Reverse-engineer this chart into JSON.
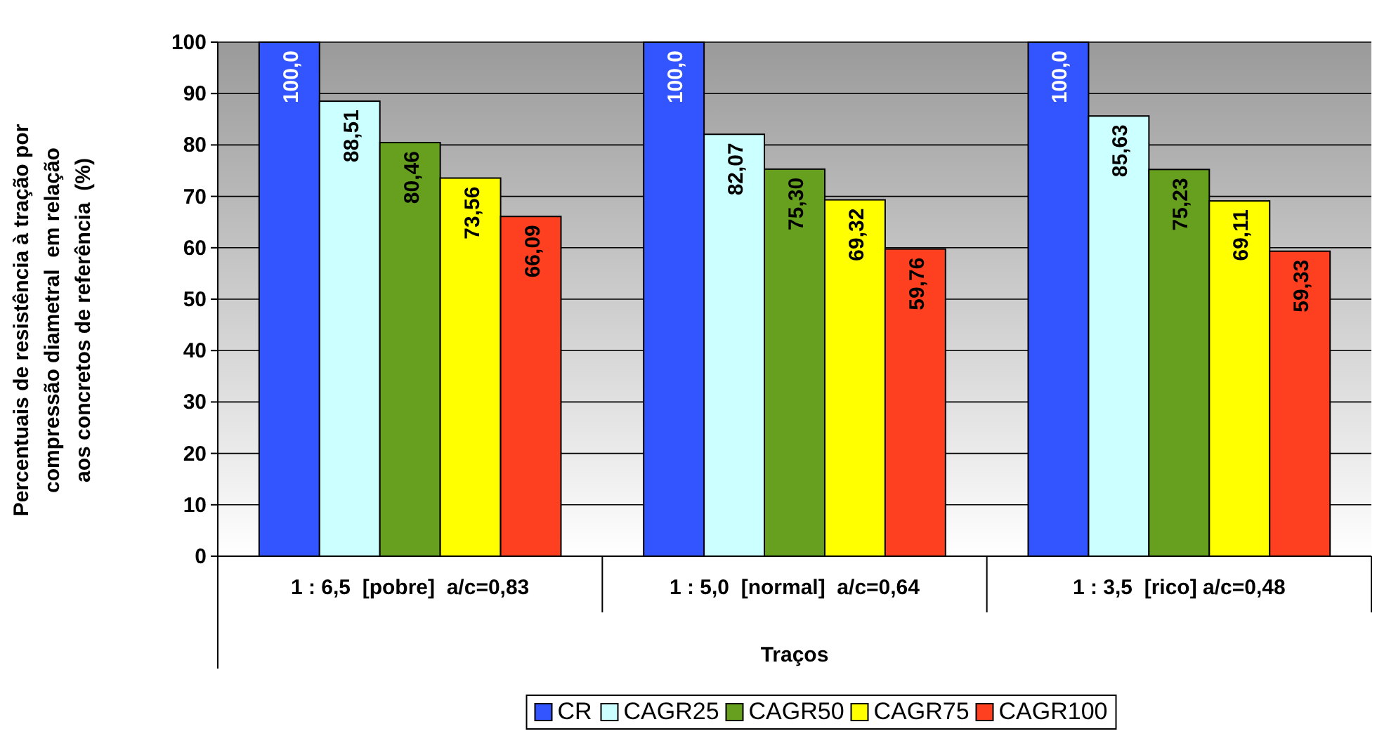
{
  "chart_data": {
    "type": "bar",
    "xlabel": "Traços",
    "ylabel": "Percentuais de resistência à tração por\ncompressão diametral  em relação\naos concretos de referência  (%)",
    "categories": [
      "1 : 6,5  [pobre]  a/c=0,83",
      "1 : 5,0  [normal]  a/c=0,64",
      "1 : 3,5  [rico] a/c=0,48"
    ],
    "series": [
      {
        "name": "CR",
        "color": "#3355ff",
        "values": [
          100,
          100,
          100
        ],
        "value_labels": [
          "100,0",
          "100,0",
          "100,0"
        ]
      },
      {
        "name": "CAGR25",
        "color": "#ccffff",
        "values": [
          88.51,
          82.07,
          85.63
        ],
        "value_labels": [
          "88,51",
          "82,07",
          "85,63"
        ]
      },
      {
        "name": "CAGR50",
        "color": "#66a01e",
        "values": [
          80.46,
          75.3,
          75.23
        ],
        "value_labels": [
          "80,46",
          "75,30",
          "75,23"
        ]
      },
      {
        "name": "CAGR75",
        "color": "#ffff00",
        "values": [
          73.56,
          69.32,
          69.11
        ],
        "value_labels": [
          "73,56",
          "69,32",
          "69,11"
        ]
      },
      {
        "name": "CAGR100",
        "color": "#ff4020",
        "values": [
          66.09,
          59.76,
          59.33
        ],
        "value_labels": [
          "66,09",
          "59,76",
          "59,33"
        ]
      }
    ],
    "ylim": [
      0,
      100
    ],
    "yticks": [
      0,
      10,
      20,
      30,
      40,
      50,
      60,
      70,
      80,
      90,
      100
    ],
    "grid": "y",
    "legend": "bottom"
  }
}
